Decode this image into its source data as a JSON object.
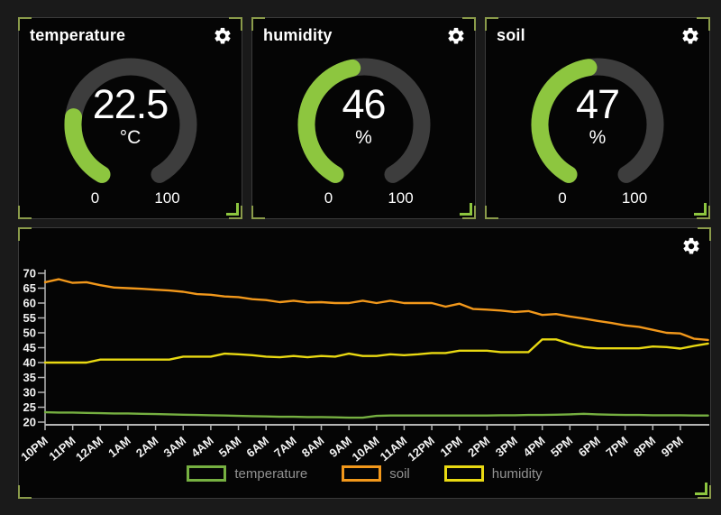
{
  "theme": {
    "page_bg": "#1a1a1a",
    "card_bg": "#050505",
    "card_border": "#3a3a3a",
    "corner_accent": "#8a9b4a",
    "resize_handle_color": "#8dc63f",
    "title_color": "#ffffff",
    "gauge_fill": "#8dc63f",
    "gauge_track": "#3d3d3d",
    "axis_color": "#b5b5b5",
    "tick_label_color": "#f2f2f2",
    "legend_text_color": "#929292"
  },
  "icons": {
    "card_action": "settings-gear-icon"
  },
  "gauges": [
    {
      "title": "temperature",
      "value": "22.5",
      "unit": "°C",
      "percent": 22.5,
      "min": "0",
      "max": "100"
    },
    {
      "title": "humidity",
      "value": "46",
      "unit": "%",
      "percent": 46,
      "min": "0",
      "max": "100"
    },
    {
      "title": "soil",
      "value": "47",
      "unit": "%",
      "percent": 47,
      "min": "0",
      "max": "100"
    }
  ],
  "chart_data": {
    "type": "line",
    "title": "",
    "xlabel": "",
    "ylabel": "",
    "grid": false,
    "legend_position": "bottom",
    "ylim": [
      20,
      70
    ],
    "xlim_hours": [
      0,
      24
    ],
    "y_ticks": [
      70,
      65,
      60,
      55,
      50,
      45,
      40,
      35,
      30,
      25,
      20
    ],
    "x_tick_labels": [
      "10PM",
      "11PM",
      "12AM",
      "1AM",
      "2AM",
      "3AM",
      "4AM",
      "5AM",
      "6AM",
      "7AM",
      "8AM",
      "9AM",
      "10AM",
      "11AM",
      "12PM",
      "1PM",
      "2PM",
      "3PM",
      "4PM",
      "5PM",
      "6PM",
      "7PM",
      "8PM",
      "9PM"
    ],
    "x_hours": [
      0,
      0.5,
      1,
      1.5,
      2,
      2.5,
      3,
      3.5,
      4,
      4.5,
      5,
      5.5,
      6,
      6.5,
      7,
      7.5,
      8,
      8.5,
      9,
      9.5,
      10,
      10.5,
      11,
      11.5,
      12,
      12.5,
      13,
      13.5,
      14,
      14.5,
      15,
      15.5,
      16,
      16.5,
      17,
      17.5,
      18,
      18.5,
      19,
      19.5,
      20,
      20.5,
      21,
      21.5,
      22,
      22.5,
      23,
      23.5,
      24
    ],
    "series": [
      {
        "name": "temperature",
        "color": "#76b041",
        "values": [
          23.3,
          23.2,
          23.2,
          23.1,
          23.0,
          22.9,
          22.9,
          22.8,
          22.7,
          22.6,
          22.5,
          22.4,
          22.3,
          22.2,
          22.1,
          22.0,
          21.9,
          21.8,
          21.8,
          21.7,
          21.7,
          21.6,
          21.5,
          21.5,
          22.1,
          22.2,
          22.2,
          22.2,
          22.2,
          22.2,
          22.2,
          22.2,
          22.2,
          22.3,
          22.3,
          22.4,
          22.4,
          22.5,
          22.6,
          22.8,
          22.6,
          22.5,
          22.4,
          22.4,
          22.3,
          22.3,
          22.3,
          22.2,
          22.2
        ]
      },
      {
        "name": "soil",
        "color": "#f2981b",
        "values": [
          67.0,
          68.0,
          66.8,
          67.0,
          66.0,
          65.2,
          65.0,
          64.8,
          64.5,
          64.2,
          63.8,
          63.0,
          62.8,
          62.2,
          62.0,
          61.3,
          61.0,
          60.3,
          60.8,
          60.2,
          60.3,
          60.0,
          60.0,
          60.8,
          60.0,
          60.8,
          60.0,
          60.0,
          60.0,
          58.8,
          59.8,
          58.0,
          57.8,
          57.5,
          57.0,
          57.3,
          56.0,
          56.3,
          55.5,
          54.8,
          54.0,
          53.3,
          52.5,
          52.0,
          51.0,
          50.0,
          49.8,
          48.0,
          47.6
        ]
      },
      {
        "name": "humidity",
        "color": "#e9d912",
        "values": [
          40,
          40,
          40,
          40,
          41,
          41,
          41,
          41,
          41,
          41,
          42,
          42,
          42,
          43,
          42.8,
          42.5,
          42,
          41.8,
          42.2,
          41.8,
          42.2,
          42,
          43,
          42.2,
          42.2,
          42.8,
          42.5,
          42.8,
          43.2,
          43.2,
          44,
          44,
          44,
          43.5,
          43.5,
          43.5,
          47.8,
          47.8,
          46.3,
          45.2,
          44.8,
          44.8,
          44.8,
          44.8,
          45.4,
          45.2,
          44.7,
          45.6,
          46.4
        ]
      }
    ]
  }
}
